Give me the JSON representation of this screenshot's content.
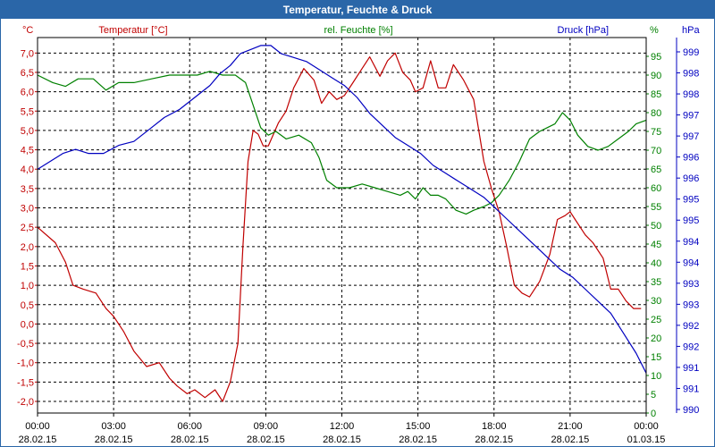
{
  "window": {
    "title": "Temperatur, Feuchte & Druck"
  },
  "colors": {
    "title_bg": "#2a66a8",
    "temperature": "#c00000",
    "humidity": "#008000",
    "pressure": "#0000c0",
    "grid": "#000000"
  },
  "chart_data": {
    "type": "line",
    "title": "Temperatur, Feuchte & Druck",
    "x_ticks": [
      {
        "time": "00:00",
        "date": "28.02.15"
      },
      {
        "time": "03:00",
        "date": "28.02.15"
      },
      {
        "time": "06:00",
        "date": "28.02.15"
      },
      {
        "time": "09:00",
        "date": "28.02.15"
      },
      {
        "time": "12:00",
        "date": "28.02.15"
      },
      {
        "time": "15:00",
        "date": "28.02.15"
      },
      {
        "time": "18:00",
        "date": "28.02.15"
      },
      {
        "time": "21:00",
        "date": "28.02.15"
      },
      {
        "time": "00:00",
        "date": "01.03.15"
      }
    ],
    "xlim": [
      0,
      24
    ],
    "axes": {
      "left": {
        "unit": "°C",
        "label": "Temperatur [°C]",
        "min": -2.3,
        "max": 7.4,
        "ticks": [
          "7,0",
          "6,5",
          "6,0",
          "5,5",
          "5,0",
          "4,5",
          "4,0",
          "3,5",
          "3,0",
          "2,5",
          "2,0",
          "1,5",
          "1,0",
          "0,5",
          "0,0",
          "-0,5",
          "-1,0",
          "-1,5",
          "-2,0"
        ]
      },
      "right1": {
        "unit": "%",
        "label": "rel. Feuchte [%]",
        "min": 0,
        "max": 100,
        "ticks": [
          "95",
          "90",
          "85",
          "80",
          "75",
          "70",
          "65",
          "60",
          "55",
          "50",
          "45",
          "40",
          "35",
          "30",
          "25",
          "20",
          "15",
          "10",
          "5",
          "0"
        ]
      },
      "right2": {
        "unit": "hPa",
        "label": "Druck [hPa]",
        "min": 990,
        "max": 999.4,
        "ticks": [
          "999",
          "998",
          "998",
          "997",
          "997",
          "996",
          "996",
          "995",
          "995",
          "994",
          "994",
          "993",
          "993",
          "992",
          "992",
          "991",
          "991",
          "990"
        ]
      }
    },
    "series": [
      {
        "name": "Temperatur [°C]",
        "axis": "left",
        "x": [
          0,
          0.7,
          1.1,
          1.4,
          1.8,
          2.3,
          2.7,
          3.0,
          3.4,
          3.8,
          4.3,
          4.8,
          5.2,
          5.5,
          5.9,
          6.2,
          6.6,
          6.8,
          7.0,
          7.3,
          7.6,
          7.9,
          8.1,
          8.3,
          8.5,
          8.7,
          8.9,
          9.1,
          9.3,
          9.5,
          9.8,
          10.1,
          10.5,
          10.9,
          11.2,
          11.5,
          11.8,
          12.1,
          12.4,
          12.8,
          13.1,
          13.5,
          13.8,
          14.1,
          14.4,
          14.7,
          14.9,
          15.2,
          15.5,
          15.8,
          16.1,
          16.4,
          16.8,
          17.2,
          17.6,
          17.9,
          18.2,
          18.5,
          18.8,
          19.1,
          19.4,
          19.8,
          20.2,
          20.5,
          20.8,
          21.0,
          21.2,
          21.6,
          21.9,
          22.3,
          22.6,
          22.9,
          23.2,
          23.5,
          23.8
        ],
        "y": [
          2.5,
          2.1,
          1.6,
          1.0,
          0.9,
          0.8,
          0.4,
          0.2,
          -0.2,
          -0.7,
          -1.1,
          -1.0,
          -1.4,
          -1.6,
          -1.8,
          -1.7,
          -1.9,
          -1.8,
          -1.7,
          -2.0,
          -1.5,
          -0.5,
          2.0,
          4.2,
          5.0,
          4.9,
          4.6,
          4.6,
          4.9,
          5.2,
          5.5,
          6.1,
          6.6,
          6.3,
          5.7,
          6.0,
          5.8,
          5.9,
          6.2,
          6.6,
          6.9,
          6.4,
          6.8,
          7.0,
          6.5,
          6.3,
          6.0,
          6.1,
          6.8,
          6.1,
          6.1,
          6.7,
          6.3,
          5.8,
          4.2,
          3.5,
          2.9,
          2.0,
          1.0,
          0.8,
          0.7,
          1.1,
          1.8,
          2.7,
          2.8,
          2.9,
          2.7,
          2.3,
          2.1,
          1.7,
          0.9,
          0.9,
          0.6,
          0.4,
          0.4
        ]
      },
      {
        "name": "rel. Feuchte [%]",
        "axis": "right1",
        "x": [
          0,
          0.6,
          1.1,
          1.6,
          2.2,
          2.7,
          3.2,
          3.8,
          4.5,
          5.2,
          5.8,
          6.3,
          6.8,
          7.3,
          7.8,
          8.2,
          8.5,
          8.8,
          9.1,
          9.4,
          9.8,
          10.3,
          10.8,
          11.1,
          11.4,
          11.8,
          12.3,
          12.8,
          13.3,
          13.8,
          14.3,
          14.6,
          14.9,
          15.2,
          15.5,
          15.8,
          16.1,
          16.5,
          16.9,
          17.2,
          17.6,
          17.9,
          18.2,
          18.6,
          19.0,
          19.4,
          19.8,
          20.1,
          20.4,
          20.7,
          21.0,
          21.3,
          21.7,
          22.1,
          22.5,
          22.9,
          23.3,
          23.6,
          24.0
        ],
        "y": [
          90,
          88,
          87,
          89,
          89,
          86,
          88,
          88,
          89,
          90,
          90,
          90,
          91,
          90,
          90,
          88,
          82,
          76,
          74,
          75,
          73,
          74,
          72,
          68,
          62,
          60,
          60,
          61,
          60,
          59,
          58,
          59,
          57,
          60,
          58,
          58,
          57,
          54,
          53,
          54,
          55,
          56,
          58,
          62,
          67,
          73,
          75,
          76,
          77,
          80,
          78,
          74,
          71,
          70,
          71,
          73,
          75,
          77,
          78
        ]
      },
      {
        "name": "Druck [hPa]",
        "axis": "right2",
        "x": [
          0,
          0.5,
          1.0,
          1.5,
          2.0,
          2.6,
          3.2,
          3.8,
          4.4,
          5.0,
          5.6,
          6.2,
          6.8,
          7.2,
          7.6,
          8.0,
          8.4,
          8.8,
          9.2,
          9.6,
          10.1,
          10.6,
          11.1,
          11.6,
          12.1,
          12.6,
          13.1,
          13.6,
          14.1,
          14.6,
          15.1,
          15.6,
          16.1,
          16.6,
          17.1,
          17.6,
          18.1,
          18.6,
          19.1,
          19.6,
          20.1,
          20.6,
          21.1,
          21.6,
          22.1,
          22.6,
          23.1,
          23.6,
          24.0
        ],
        "y": [
          996.1,
          996.3,
          996.5,
          996.6,
          996.5,
          996.5,
          996.7,
          996.8,
          997.1,
          997.4,
          997.6,
          997.9,
          998.2,
          998.5,
          998.7,
          999.0,
          999.1,
          999.2,
          999.2,
          999.0,
          998.9,
          998.8,
          998.6,
          998.4,
          998.2,
          997.9,
          997.5,
          997.2,
          996.9,
          996.7,
          996.5,
          996.2,
          996.0,
          995.8,
          995.6,
          995.4,
          995.1,
          994.8,
          994.5,
          994.2,
          993.9,
          993.6,
          993.4,
          993.1,
          992.8,
          992.5,
          992.0,
          991.5,
          991.0
        ]
      }
    ]
  }
}
